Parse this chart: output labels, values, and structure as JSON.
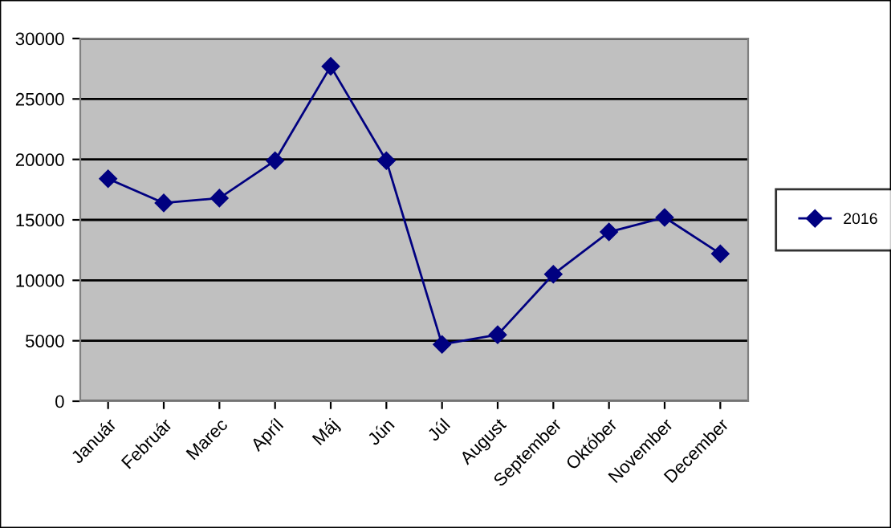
{
  "chart_data": {
    "type": "line",
    "categories": [
      "Január",
      "Február",
      "Marec",
      "Apríl",
      "Máj",
      "Jún",
      "Júl",
      "August",
      "September",
      "Október",
      "November",
      "December"
    ],
    "series": [
      {
        "name": "2016",
        "color": "#000080",
        "values": [
          18400,
          16400,
          16800,
          19900,
          27700,
          19900,
          4700,
          5500,
          10500,
          14000,
          15200,
          12200
        ]
      }
    ],
    "ylim": [
      0,
      30000
    ],
    "yticks": [
      0,
      5000,
      10000,
      15000,
      20000,
      25000,
      30000
    ],
    "grid": "y",
    "legend": "right",
    "marker": "diamond",
    "line_style": "solid"
  }
}
